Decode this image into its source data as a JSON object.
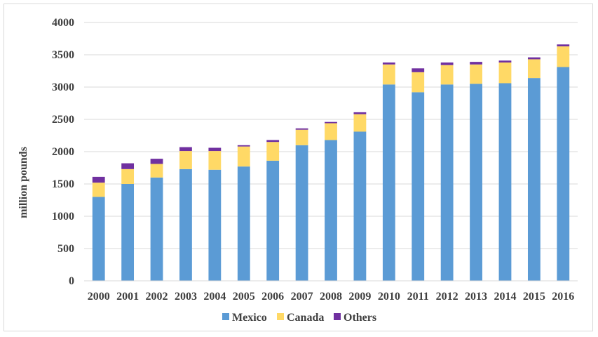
{
  "chart_data": {
    "type": "bar",
    "stacked": true,
    "categories": [
      "2000",
      "2001",
      "2002",
      "2003",
      "2004",
      "2005",
      "2006",
      "2007",
      "2008",
      "2009",
      "2010",
      "2011",
      "2012",
      "2013",
      "2014",
      "2015",
      "2016"
    ],
    "series": [
      {
        "name": "Mexico",
        "color": "#5b9bd5",
        "values": [
          1300,
          1500,
          1600,
          1730,
          1720,
          1770,
          1860,
          2100,
          2180,
          2310,
          3040,
          2920,
          3040,
          3050,
          3060,
          3140,
          3310
        ]
      },
      {
        "name": "Canada",
        "color": "#ffd966",
        "values": [
          220,
          230,
          210,
          280,
          290,
          310,
          290,
          240,
          260,
          270,
          310,
          310,
          300,
          300,
          320,
          290,
          320
        ]
      },
      {
        "name": "Others",
        "color": "#7030a0",
        "values": [
          90,
          90,
          80,
          60,
          50,
          20,
          30,
          20,
          20,
          30,
          30,
          60,
          40,
          40,
          30,
          30,
          30
        ]
      }
    ],
    "title": "",
    "xlabel": "",
    "ylabel": "million pounds",
    "ylim": [
      0,
      4000
    ],
    "yticks": [
      0,
      500,
      1000,
      1500,
      2000,
      2500,
      3000,
      3500,
      4000
    ],
    "grid": true,
    "legend": "bottom"
  }
}
